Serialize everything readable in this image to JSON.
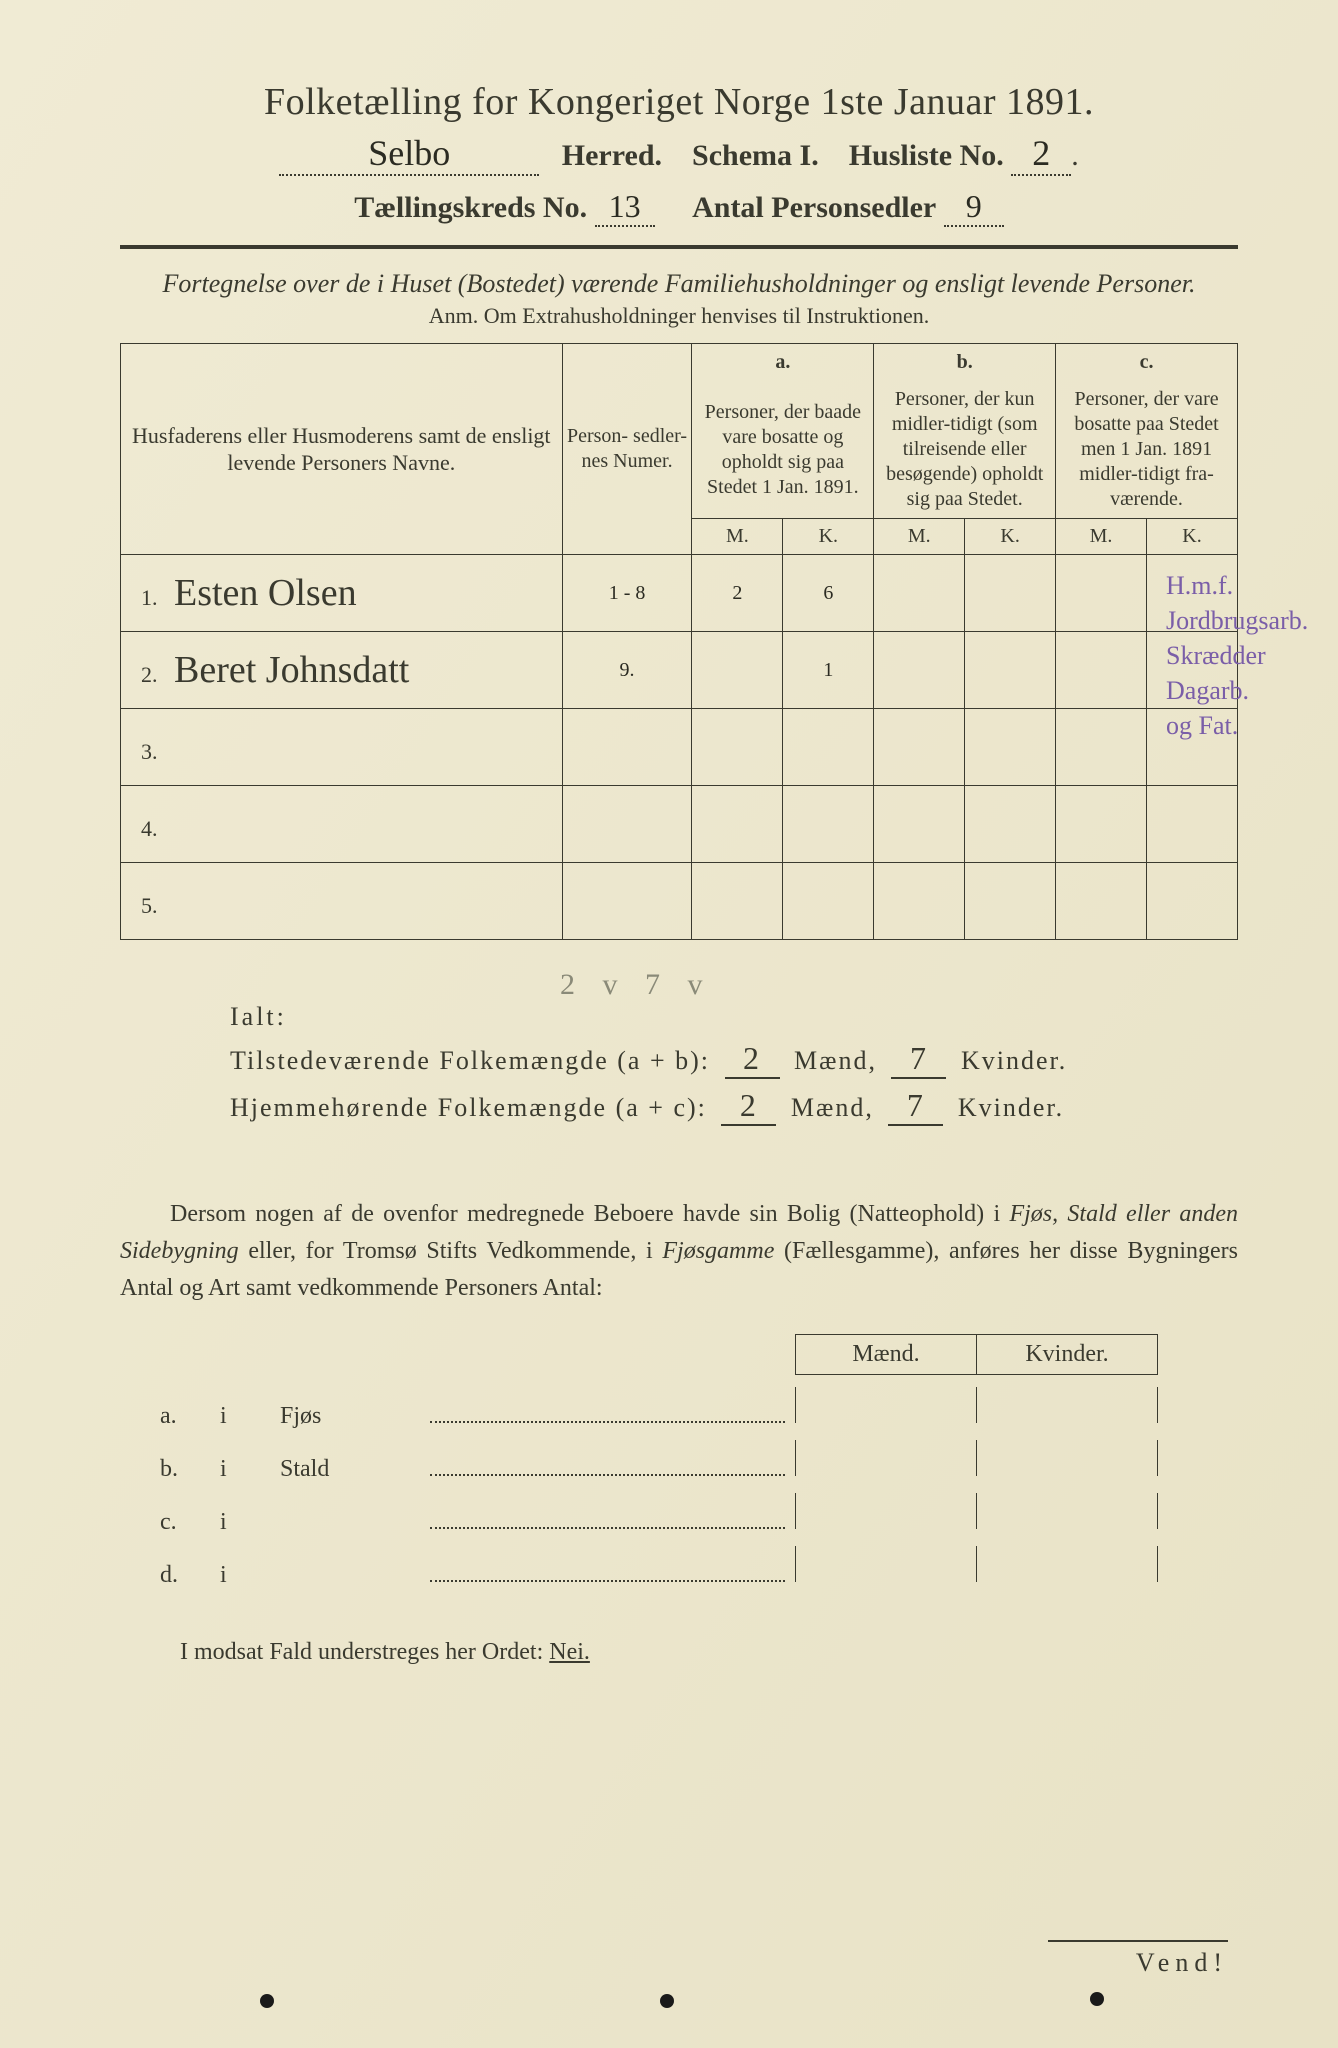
{
  "header": {
    "title": "Folketælling for Kongeriget Norge 1ste Januar 1891.",
    "herred_value": "Selbo",
    "herred_label": "Herred.",
    "schema_label": "Schema I.",
    "husliste_label": "Husliste No.",
    "husliste_value": "2",
    "kreds_label": "Tællingskreds No.",
    "kreds_value": "13",
    "antal_label": "Antal Personsedler",
    "antal_value": "9"
  },
  "instruction": {
    "line1": "Fortegnelse over de i Huset (Bostedet) værende Familiehusholdninger og ensligt levende Personer.",
    "anm": "Anm. Om Extrahusholdninger henvises til Instruktionen."
  },
  "table": {
    "col_name": "Husfaderens eller Husmoderens samt de ensligt levende Personers Navne.",
    "col_num": "Person-\nsedler-\nnes\nNumer.",
    "col_a_tag": "a.",
    "col_a": "Personer, der baade vare bosatte og opholdt sig paa Stedet 1 Jan. 1891.",
    "col_b_tag": "b.",
    "col_b": "Personer, der kun midler-tidigt (som tilreisende eller besøgende) opholdt sig paa Stedet.",
    "col_c_tag": "c.",
    "col_c": "Personer, der vare bosatte paa Stedet men 1 Jan. 1891 midler-tidigt fra-værende.",
    "M": "M.",
    "K": "K.",
    "rows": [
      {
        "n": "1.",
        "name": "Esten Olsen",
        "num": "1 - 8",
        "aM": "2",
        "aK": "6",
        "bM": "",
        "bK": "",
        "cM": "",
        "cK": ""
      },
      {
        "n": "2.",
        "name": "Beret Johnsdatt",
        "num": "9.",
        "aM": "",
        "aK": "1",
        "bM": "",
        "bK": "",
        "cM": "",
        "cK": ""
      },
      {
        "n": "3.",
        "name": "",
        "num": "",
        "aM": "",
        "aK": "",
        "bM": "",
        "bK": "",
        "cM": "",
        "cK": ""
      },
      {
        "n": "4.",
        "name": "",
        "num": "",
        "aM": "",
        "aK": "",
        "bM": "",
        "bK": "",
        "cM": "",
        "cK": ""
      },
      {
        "n": "5.",
        "name": "",
        "num": "",
        "aM": "",
        "aK": "",
        "bM": "",
        "bK": "",
        "cM": "",
        "cK": ""
      }
    ]
  },
  "margin_note": {
    "l1": "H.m.f.",
    "l2": "Jordbrugsarb.",
    "l3": "Skrædder",
    "l4": "Dagarb.",
    "l5": "og Fat."
  },
  "totals": {
    "ialt_label": "Ialt:",
    "pencil": "2 v   7 v",
    "line1_label": "Tilstedeværende Folkemængde (a + b):",
    "line2_label": "Hjemmehørende Folkemængde (a + c):",
    "maend_label": "Mænd,",
    "kvinder_label": "Kvinder.",
    "line1_m": "2",
    "line1_k": "7",
    "line2_m": "2",
    "line2_k": "7"
  },
  "para": {
    "text1": "Dersom nogen af de ovenfor medregnede Beboere havde sin Bolig (Natteophold) i ",
    "ital1": "Fjøs, Stald eller anden Sidebygning",
    "text2": " eller, for Tromsø Stifts Vedkommende, i ",
    "ital2": "Fjøsgamme",
    "text3": " (Fællesgamme), anføres her disse Bygningers Antal og Art samt vedkommende Personers Antal:"
  },
  "mk": {
    "m": "Mænd.",
    "k": "Kvinder."
  },
  "abcd": {
    "rows": [
      {
        "tag": "a.",
        "i": "i",
        "name": "Fjøs"
      },
      {
        "tag": "b.",
        "i": "i",
        "name": "Stald"
      },
      {
        "tag": "c.",
        "i": "i",
        "name": ""
      },
      {
        "tag": "d.",
        "i": "i",
        "name": ""
      }
    ]
  },
  "nei": {
    "text": "I modsat Fald understreges her Ordet: ",
    "word": "Nei."
  },
  "vend": "Vend!",
  "colors": {
    "paper": "#ece6cb",
    "ink": "#3a3a2f",
    "purple": "#7a5ea8",
    "pencil": "#8a8a78"
  }
}
